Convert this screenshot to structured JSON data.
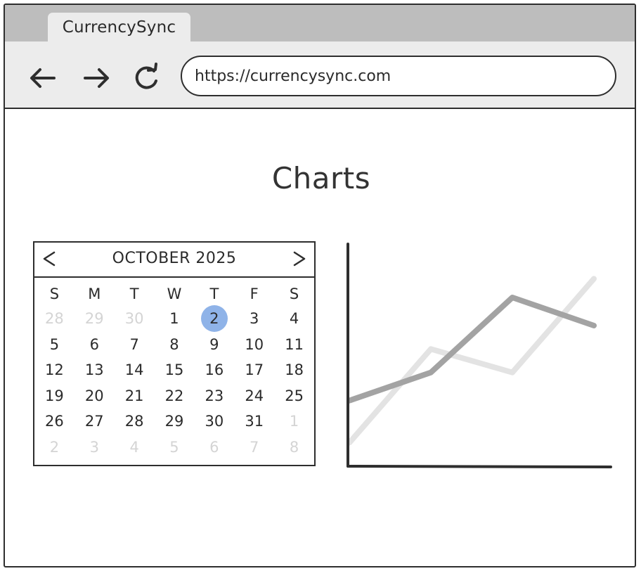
{
  "browser": {
    "tab_title": "CurrencySync",
    "url": "https://currencysync.com"
  },
  "page": {
    "title": "Charts"
  },
  "calendar": {
    "month_label": "OCTOBER 2025",
    "weekdays": [
      "S",
      "M",
      "T",
      "W",
      "T",
      "F",
      "S"
    ],
    "days": [
      {
        "label": "28",
        "muted": true
      },
      {
        "label": "29",
        "muted": true
      },
      {
        "label": "30",
        "muted": true
      },
      {
        "label": "1"
      },
      {
        "label": "2",
        "selected": true
      },
      {
        "label": "3"
      },
      {
        "label": "4"
      },
      {
        "label": "5"
      },
      {
        "label": "6"
      },
      {
        "label": "7"
      },
      {
        "label": "8"
      },
      {
        "label": "9"
      },
      {
        "label": "10"
      },
      {
        "label": "11"
      },
      {
        "label": "12"
      },
      {
        "label": "13"
      },
      {
        "label": "14"
      },
      {
        "label": "15"
      },
      {
        "label": "16"
      },
      {
        "label": "17"
      },
      {
        "label": "18"
      },
      {
        "label": "19"
      },
      {
        "label": "20"
      },
      {
        "label": "21"
      },
      {
        "label": "22"
      },
      {
        "label": "23"
      },
      {
        "label": "24"
      },
      {
        "label": "25"
      },
      {
        "label": "26"
      },
      {
        "label": "27"
      },
      {
        "label": "28"
      },
      {
        "label": "29"
      },
      {
        "label": "30"
      },
      {
        "label": "31"
      },
      {
        "label": "1",
        "muted": true
      },
      {
        "label": "2",
        "muted": true
      },
      {
        "label": "3",
        "muted": true
      },
      {
        "label": "4",
        "muted": true
      },
      {
        "label": "5",
        "muted": true
      },
      {
        "label": "6",
        "muted": true
      },
      {
        "label": "7",
        "muted": true
      },
      {
        "label": "8",
        "muted": true
      }
    ],
    "selected_color": "#8fb3e8"
  },
  "chart_data": {
    "type": "line",
    "x": [
      0,
      1,
      2,
      3
    ],
    "series": [
      {
        "values": [
          1,
          5,
          4,
          8
        ],
        "color": "#e3e3e3"
      },
      {
        "values": [
          2.8,
          4,
          7.2,
          6
        ],
        "color": "#a3a3a3"
      }
    ],
    "xlim": [
      0,
      3
    ],
    "ylim": [
      0,
      9
    ],
    "grid": false
  }
}
